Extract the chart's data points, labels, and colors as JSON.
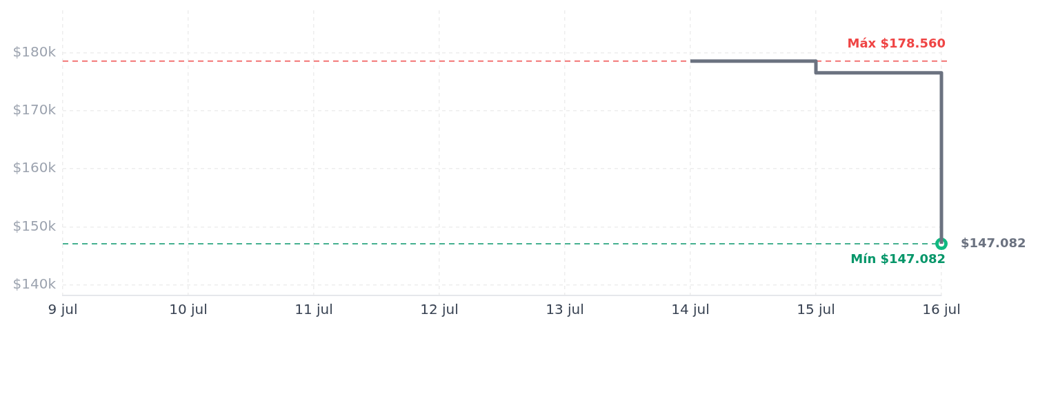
{
  "chart_data": {
    "type": "step",
    "series": [
      {
        "color": "#6b7280",
        "x": [
          "--07-14",
          "--07-15",
          "--07-16"
        ],
        "values": [
          178560,
          176550,
          147082
        ]
      },
      {
        "type": "scatter",
        "color": "#10b981",
        "marker": "circle",
        "x": [
          "--07-16"
        ],
        "values": [
          147082
        ],
        "value_labels": [
          "$147.082"
        ]
      }
    ],
    "xlim": [
      "--07-09",
      "--07-16"
    ],
    "xticks": [
      {
        "value": "--07-09",
        "label": "9 jul"
      },
      {
        "value": "--07-10",
        "label": "10 jul"
      },
      {
        "value": "--07-11",
        "label": "11 jul"
      },
      {
        "value": "--07-12",
        "label": "12 jul"
      },
      {
        "value": "--07-13",
        "label": "13 jul"
      },
      {
        "value": "--07-14",
        "label": "14 jul"
      },
      {
        "value": "--07-15",
        "label": "15 jul"
      },
      {
        "value": "--07-16",
        "label": "16 jul"
      }
    ],
    "ylim": [
      138200,
      187300
    ],
    "yticks": [
      {
        "value": 140000,
        "label": "$140k"
      },
      {
        "value": 150000,
        "label": "$150k"
      },
      {
        "value": 160000,
        "label": "$160k"
      },
      {
        "value": 170000,
        "label": "$170k"
      },
      {
        "value": 180000,
        "label": "$180k"
      }
    ],
    "grid": true,
    "ref_lines": [
      {
        "axis": "y",
        "value": 178560,
        "label": "Máx $178.560",
        "color": "#ef4444",
        "line_style": "dashed"
      },
      {
        "axis": "y",
        "value": 147082,
        "label": "Mín $147.082",
        "color": "#059669",
        "line_style": "dashed"
      }
    ]
  }
}
